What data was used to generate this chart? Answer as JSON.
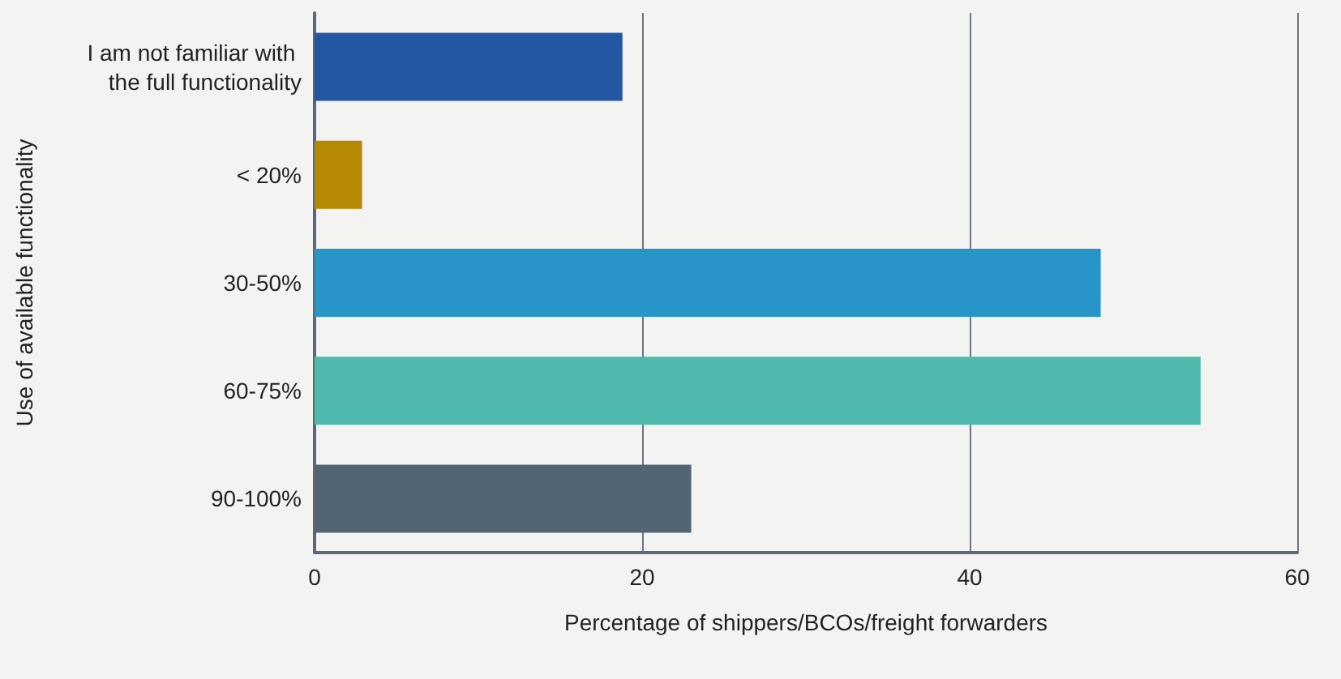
{
  "chart_data": {
    "type": "bar",
    "orientation": "horizontal",
    "xlabel": "Percentage of shippers/BCOs/freight forwarders",
    "ylabel": "Use of available functionality",
    "categories": [
      "I am not familiar with the full functionality",
      "< 20%",
      "30-50%",
      "60-75%",
      "90-100%"
    ],
    "values": [
      18.8,
      2.9,
      48,
      54.1,
      23
    ],
    "colors": [
      "#2457a3",
      "#b58904",
      "#2795c8",
      "#50b9ad",
      "#536574"
    ],
    "xlim": [
      0,
      60
    ],
    "xticks": [
      0,
      20,
      40,
      60
    ],
    "grid": "x"
  }
}
